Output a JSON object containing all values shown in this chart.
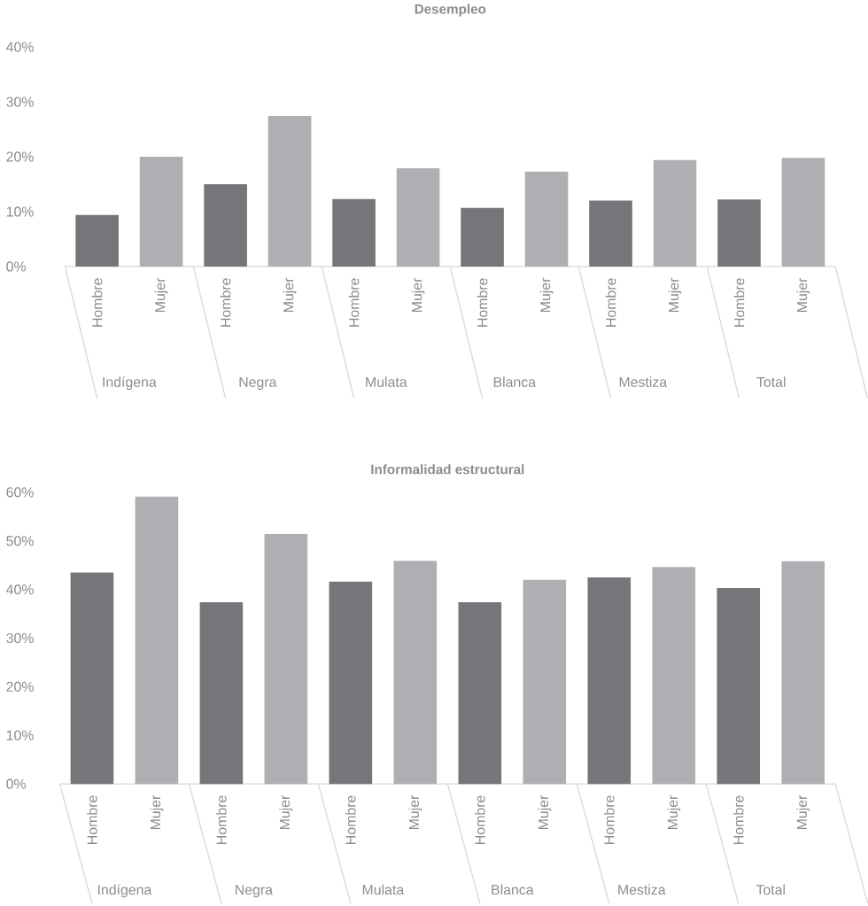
{
  "chart_data": [
    {
      "type": "bar",
      "title": "Desempleo",
      "categories": [
        "Hombre",
        "Mujer",
        "Hombre",
        "Mujer",
        "Hombre",
        "Mujer",
        "Hombre",
        "Mujer",
        "Hombre",
        "Mujer",
        "Hombre",
        "Mujer"
      ],
      "values": [
        9.4,
        20.0,
        15.0,
        27.4,
        12.3,
        17.9,
        10.7,
        17.3,
        12.0,
        19.4,
        12.2,
        19.8
      ],
      "colors": [
        "#76767a",
        "#afafb3",
        "#76767a",
        "#afafb3",
        "#76767a",
        "#afafb3",
        "#76767a",
        "#afafb3",
        "#76767a",
        "#afafb3",
        "#76767a",
        "#afafb3"
      ],
      "ylim": [
        0,
        40
      ],
      "yticks": [
        {
          "value": 0,
          "label": "0%"
        },
        {
          "value": 10,
          "label": "10%"
        },
        {
          "value": 20,
          "label": "20%"
        },
        {
          "value": 30,
          "label": "30%"
        },
        {
          "value": 40,
          "label": "40%"
        }
      ],
      "annotations": [
        "Indígena",
        "Negra",
        "Mulata",
        "Blanca",
        "Mestiza",
        "Total"
      ]
    },
    {
      "type": "bar",
      "title": "Informalidad estructural",
      "categories": [
        "Hombre",
        "Mujer",
        "Hombre",
        "Mujer",
        "Hombre",
        "Mujer",
        "Hombre",
        "Mujer",
        "Hombre",
        "Mujer",
        "Hombre",
        "Mujer"
      ],
      "values": [
        43.5,
        59.1,
        37.4,
        51.4,
        41.6,
        45.9,
        37.4,
        42.0,
        42.5,
        44.6,
        40.3,
        45.8
      ],
      "colors": [
        "#76767a",
        "#afafb3",
        "#76767a",
        "#afafb3",
        "#76767a",
        "#afafb3",
        "#76767a",
        "#afafb3",
        "#76767a",
        "#afafb3",
        "#76767a",
        "#afafb3"
      ],
      "ylim": [
        0,
        60
      ],
      "yticks": [
        {
          "value": 0,
          "label": "0%"
        },
        {
          "value": 10,
          "label": "10%"
        },
        {
          "value": 20,
          "label": "20%"
        },
        {
          "value": 30,
          "label": "30%"
        },
        {
          "value": 40,
          "label": "40%"
        },
        {
          "value": 50,
          "label": "50%"
        },
        {
          "value": 60,
          "label": "60%"
        }
      ],
      "annotations": [
        "Indígena",
        "Negra",
        "Mulata",
        "Blanca",
        "Mestiza",
        "Total"
      ]
    }
  ]
}
